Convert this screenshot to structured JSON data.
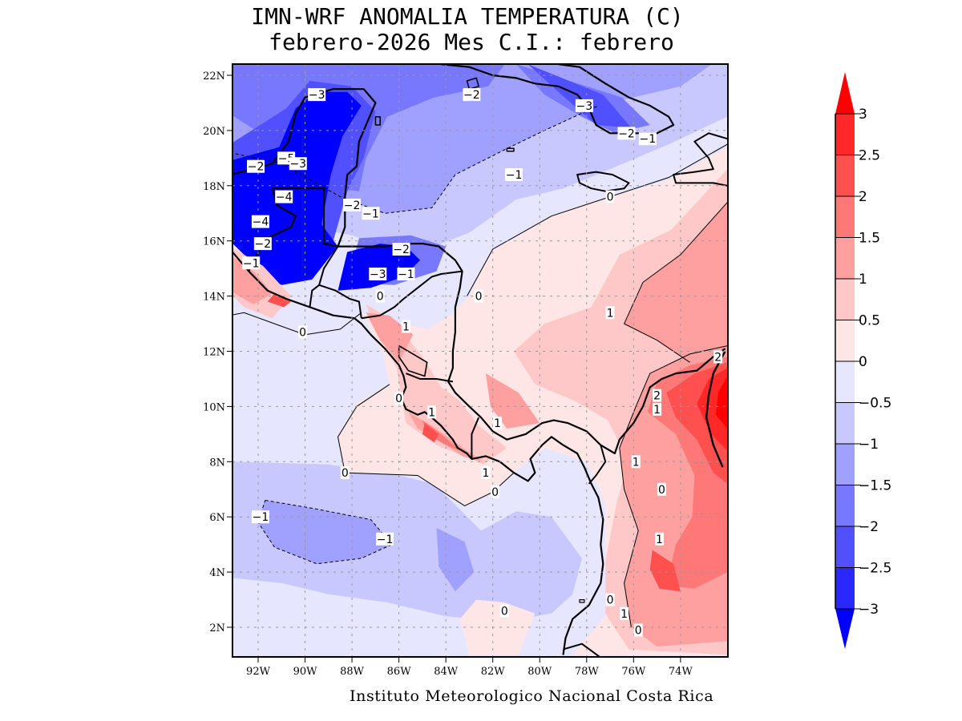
{
  "title": {
    "line1": "IMN-WRF  ANOMALIA TEMPERATURA (C)",
    "line2": "febrero-2026 Mes C.I.: febrero"
  },
  "credit": "Instituto Meteorologico Nacional Costa Rica",
  "colors": {
    "gt3": "#FF0000",
    "c2_5_3": "#FF2828",
    "c2_2_5": "#FF5050",
    "c1_5_2": "#FF7878",
    "c1_1_5": "#FFA0A0",
    "c0_5_1": "#FFC8C8",
    "c0_0_5": "#FFE6E6",
    "cm0_5_0": "#E6E6FF",
    "cm1_m0_5": "#C8C8FF",
    "cm1_5_m1": "#A0A0FF",
    "cm2_m1_5": "#7878FF",
    "cm2_5_m2": "#5050FF",
    "cm3_m2_5": "#2828FF",
    "ltm3": "#0000FF"
  },
  "chart_data": {
    "type": "heatmap",
    "title": "IMN-WRF  ANOMALIA TEMPERATURA (C)",
    "subtitle": "febrero-2026 Mes C.I.: febrero",
    "variable": "temperature anomaly",
    "units": "C",
    "xlim": [
      -93.1,
      -72.1
    ],
    "ylim": [
      1.0,
      22.4
    ],
    "x_ticks": [
      "92W",
      "90W",
      "88W",
      "86W",
      "84W",
      "82W",
      "80W",
      "78W",
      "76W",
      "74W"
    ],
    "x_tick_values": [
      -92,
      -90,
      -88,
      -86,
      -84,
      -82,
      -80,
      -78,
      -76,
      -74
    ],
    "y_ticks": [
      "2N",
      "4N",
      "6N",
      "8N",
      "10N",
      "12N",
      "14N",
      "16N",
      "18N",
      "20N",
      "22N"
    ],
    "y_tick_values": [
      2,
      4,
      6,
      8,
      10,
      12,
      14,
      16,
      18,
      20,
      22
    ],
    "grid": true,
    "colorbar": {
      "position": "right",
      "levels": [
        3,
        2.5,
        2,
        1.5,
        1,
        0.5,
        0,
        -0.5,
        -1,
        -1.5,
        -2,
        -2.5,
        -3
      ],
      "labels": [
        "3",
        "2.5",
        "2",
        "1.5",
        "1",
        "0.5",
        "0",
        "−0.5",
        "−1",
        "−1.5",
        "−2",
        "−2.5",
        "−3"
      ],
      "extend": "both"
    },
    "contour_labels": [
      {
        "text": "−3",
        "lon": -89.5,
        "lat": 21.3
      },
      {
        "text": "−2",
        "lon": -82.9,
        "lat": 21.3
      },
      {
        "text": "−3",
        "lon": -78.1,
        "lat": 20.9
      },
      {
        "text": "−2",
        "lon": -76.3,
        "lat": 19.9
      },
      {
        "text": "−1",
        "lon": -75.4,
        "lat": 19.7
      },
      {
        "text": "−1",
        "lon": -81.1,
        "lat": 18.4
      },
      {
        "text": "0",
        "lon": -77.0,
        "lat": 17.6
      },
      {
        "text": "−5",
        "lon": -90.8,
        "lat": 19.0
      },
      {
        "text": "−3",
        "lon": -90.3,
        "lat": 18.8
      },
      {
        "text": "−2",
        "lon": -92.1,
        "lat": 18.7
      },
      {
        "text": "−4",
        "lon": -90.9,
        "lat": 17.6
      },
      {
        "text": "−2",
        "lon": -88.0,
        "lat": 17.3
      },
      {
        "text": "−1",
        "lon": -87.2,
        "lat": 17.0
      },
      {
        "text": "−4",
        "lon": -91.9,
        "lat": 16.7
      },
      {
        "text": "−2",
        "lon": -91.8,
        "lat": 15.9
      },
      {
        "text": "−1",
        "lon": -92.3,
        "lat": 15.2
      },
      {
        "text": "−2",
        "lon": -85.9,
        "lat": 15.7
      },
      {
        "text": "−3",
        "lon": -86.9,
        "lat": 14.8
      },
      {
        "text": "−1",
        "lon": -85.7,
        "lat": 14.8
      },
      {
        "text": "0",
        "lon": -86.8,
        "lat": 14.0
      },
      {
        "text": "0",
        "lon": -82.6,
        "lat": 14.0
      },
      {
        "text": "1",
        "lon": -77.0,
        "lat": 13.4
      },
      {
        "text": "0",
        "lon": -90.1,
        "lat": 12.7
      },
      {
        "text": "1",
        "lon": -85.7,
        "lat": 12.9
      },
      {
        "text": "2",
        "lon": -72.4,
        "lat": 11.8
      },
      {
        "text": "0",
        "lon": -86.0,
        "lat": 10.3
      },
      {
        "text": "2",
        "lon": -75.0,
        "lat": 10.4
      },
      {
        "text": "1",
        "lon": -84.6,
        "lat": 9.8
      },
      {
        "text": "1",
        "lon": -75.0,
        "lat": 9.9
      },
      {
        "text": "1",
        "lon": -81.8,
        "lat": 9.4
      },
      {
        "text": "1",
        "lon": -75.9,
        "lat": 8.0
      },
      {
        "text": "0",
        "lon": -88.3,
        "lat": 7.6
      },
      {
        "text": "1",
        "lon": -82.3,
        "lat": 7.6
      },
      {
        "text": "0",
        "lon": -81.9,
        "lat": 6.9
      },
      {
        "text": "0",
        "lon": -74.8,
        "lat": 7.0
      },
      {
        "text": "−1",
        "lon": -91.9,
        "lat": 6.0
      },
      {
        "text": "−1",
        "lon": -86.6,
        "lat": 5.2
      },
      {
        "text": "1",
        "lon": -74.9,
        "lat": 5.2
      },
      {
        "text": "0",
        "lon": -81.5,
        "lat": 2.6
      },
      {
        "text": "0",
        "lon": -77.0,
        "lat": 3.0
      },
      {
        "text": "1",
        "lon": -76.4,
        "lat": 2.5
      },
      {
        "text": "0",
        "lon": -75.8,
        "lat": 1.9
      }
    ]
  }
}
